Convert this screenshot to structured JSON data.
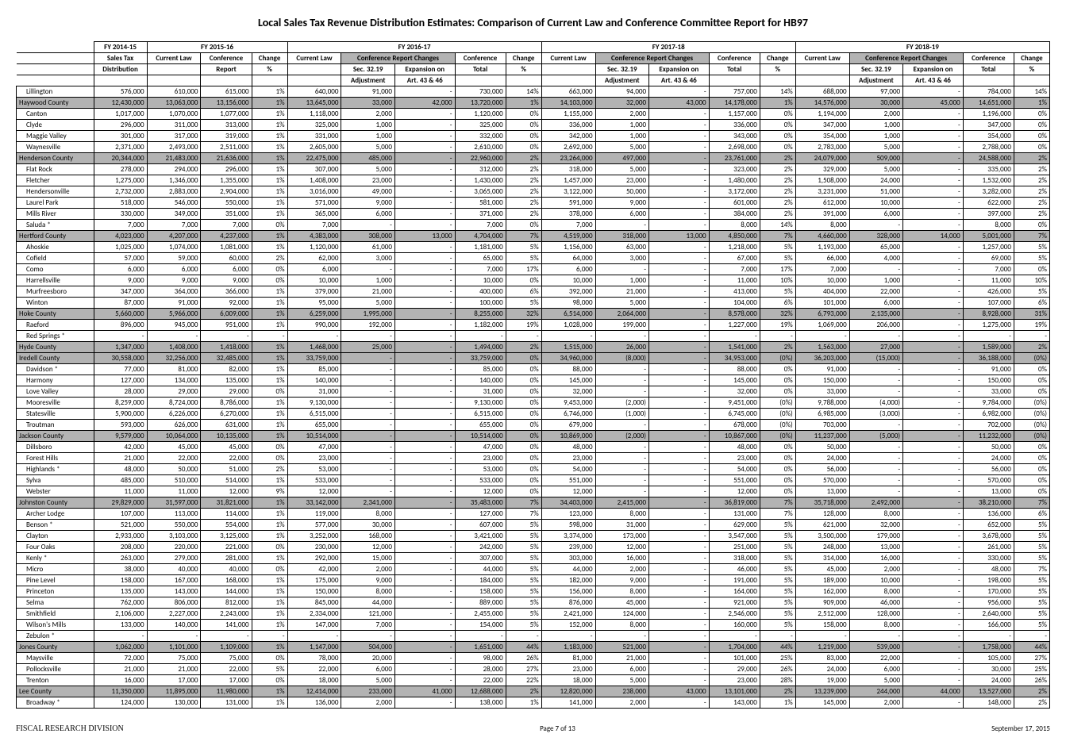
{
  "title": "Local Sales Tax Revenue Distribution Estimates: Comparison of Current Law and Conference Committee Report for HB97",
  "footer": {
    "left": "FISCAL RESEARCH DIVISION",
    "center": "Page 7 of 13",
    "right": "September 17, 2015"
  },
  "colors": {
    "county_bg": "#b3b3b3"
  },
  "headers": {
    "fy1415": "FY 2014-15",
    "fy1516": "FY 2015-16",
    "fy1617": "FY 2016-17",
    "fy1718": "FY 2017-18",
    "fy1819": "FY 2018-19",
    "salestax": "Sales Tax",
    "distribution": "Distribution",
    "currentlaw": "Current Law",
    "conference": "Conference",
    "report": "Report",
    "change": "Change",
    "pct": "%",
    "confchanges": "Conference Report Changes",
    "sec3219": "Sec. 32.19",
    "adjustment": "Adjustment",
    "expon": "Expansion on",
    "art": "Art. 43 & 46",
    "total": "Total"
  },
  "rows": [
    [
      "Lillington",
      0,
      "576,000",
      "610,000",
      "615,000",
      "1%",
      "640,000",
      "91,000",
      "-",
      "730,000",
      "14%",
      "663,000",
      "94,000",
      "-",
      "757,000",
      "14%",
      "688,000",
      "97,000",
      "-",
      "784,000",
      "14%"
    ],
    [
      "Haywood County",
      1,
      "12,430,000",
      "13,063,000",
      "13,156,000",
      "1%",
      "13,645,000",
      "33,000",
      "42,000",
      "13,720,000",
      "1%",
      "14,103,000",
      "32,000",
      "43,000",
      "14,178,000",
      "1%",
      "14,576,000",
      "30,000",
      "45,000",
      "14,651,000",
      "1%"
    ],
    [
      "Canton",
      0,
      "1,017,000",
      "1,070,000",
      "1,077,000",
      "1%",
      "1,118,000",
      "2,000",
      "-",
      "1,120,000",
      "0%",
      "1,155,000",
      "2,000",
      "-",
      "1,157,000",
      "0%",
      "1,194,000",
      "2,000",
      "-",
      "1,196,000",
      "0%"
    ],
    [
      "Clyde",
      0,
      "296,000",
      "311,000",
      "313,000",
      "1%",
      "325,000",
      "1,000",
      "-",
      "325,000",
      "0%",
      "336,000",
      "1,000",
      "-",
      "336,000",
      "0%",
      "347,000",
      "1,000",
      "-",
      "347,000",
      "0%"
    ],
    [
      "Maggie Valley",
      0,
      "301,000",
      "317,000",
      "319,000",
      "1%",
      "331,000",
      "1,000",
      "-",
      "332,000",
      "0%",
      "342,000",
      "1,000",
      "-",
      "343,000",
      "0%",
      "354,000",
      "1,000",
      "-",
      "354,000",
      "0%"
    ],
    [
      "Waynesville",
      0,
      "2,371,000",
      "2,493,000",
      "2,511,000",
      "1%",
      "2,605,000",
      "5,000",
      "-",
      "2,610,000",
      "0%",
      "2,692,000",
      "5,000",
      "-",
      "2,698,000",
      "0%",
      "2,783,000",
      "5,000",
      "-",
      "2,788,000",
      "0%"
    ],
    [
      "Henderson County",
      1,
      "20,344,000",
      "21,483,000",
      "21,636,000",
      "1%",
      "22,475,000",
      "485,000",
      "-",
      "22,960,000",
      "2%",
      "23,264,000",
      "497,000",
      "-",
      "23,761,000",
      "2%",
      "24,079,000",
      "509,000",
      "-",
      "24,588,000",
      "2%"
    ],
    [
      "Flat Rock",
      0,
      "278,000",
      "294,000",
      "296,000",
      "1%",
      "307,000",
      "5,000",
      "-",
      "312,000",
      "2%",
      "318,000",
      "5,000",
      "-",
      "323,000",
      "2%",
      "329,000",
      "5,000",
      "-",
      "335,000",
      "2%"
    ],
    [
      "Fletcher",
      0,
      "1,275,000",
      "1,346,000",
      "1,355,000",
      "1%",
      "1,408,000",
      "23,000",
      "-",
      "1,430,000",
      "2%",
      "1,457,000",
      "23,000",
      "-",
      "1,480,000",
      "2%",
      "1,508,000",
      "24,000",
      "-",
      "1,532,000",
      "2%"
    ],
    [
      "Hendersonville",
      0,
      "2,732,000",
      "2,883,000",
      "2,904,000",
      "1%",
      "3,016,000",
      "49,000",
      "-",
      "3,065,000",
      "2%",
      "3,122,000",
      "50,000",
      "-",
      "3,172,000",
      "2%",
      "3,231,000",
      "51,000",
      "-",
      "3,282,000",
      "2%"
    ],
    [
      "Laurel Park",
      0,
      "518,000",
      "546,000",
      "550,000",
      "1%",
      "571,000",
      "9,000",
      "-",
      "581,000",
      "2%",
      "591,000",
      "9,000",
      "-",
      "601,000",
      "2%",
      "612,000",
      "10,000",
      "-",
      "622,000",
      "2%"
    ],
    [
      "Mills River",
      0,
      "330,000",
      "349,000",
      "351,000",
      "1%",
      "365,000",
      "6,000",
      "-",
      "371,000",
      "2%",
      "378,000",
      "6,000",
      "-",
      "384,000",
      "2%",
      "391,000",
      "6,000",
      "-",
      "397,000",
      "2%"
    ],
    [
      "Saluda *",
      0,
      "7,000",
      "7,000",
      "7,000",
      "0%",
      "7,000",
      "-",
      "-",
      "7,000",
      "0%",
      "7,000",
      "-",
      "-",
      "8,000",
      "14%",
      "8,000",
      "-",
      "-",
      "8,000",
      "0%"
    ],
    [
      "Hertford County",
      1,
      "4,023,000",
      "4,207,000",
      "4,237,000",
      "1%",
      "4,383,000",
      "308,000",
      "13,000",
      "4,704,000",
      "7%",
      "4,519,000",
      "318,000",
      "13,000",
      "4,850,000",
      "7%",
      "4,660,000",
      "328,000",
      "14,000",
      "5,001,000",
      "7%"
    ],
    [
      "Ahoskie",
      0,
      "1,025,000",
      "1,074,000",
      "1,081,000",
      "1%",
      "1,120,000",
      "61,000",
      "-",
      "1,181,000",
      "5%",
      "1,156,000",
      "63,000",
      "-",
      "1,218,000",
      "5%",
      "1,193,000",
      "65,000",
      "-",
      "1,257,000",
      "5%"
    ],
    [
      "Cofield",
      0,
      "57,000",
      "59,000",
      "60,000",
      "2%",
      "62,000",
      "3,000",
      "-",
      "65,000",
      "5%",
      "64,000",
      "3,000",
      "-",
      "67,000",
      "5%",
      "66,000",
      "4,000",
      "-",
      "69,000",
      "5%"
    ],
    [
      "Como",
      0,
      "6,000",
      "6,000",
      "6,000",
      "0%",
      "6,000",
      "-",
      "-",
      "7,000",
      "17%",
      "6,000",
      "-",
      "-",
      "7,000",
      "17%",
      "7,000",
      "-",
      "-",
      "7,000",
      "0%"
    ],
    [
      "Harrellsville",
      0,
      "9,000",
      "9,000",
      "9,000",
      "0%",
      "10,000",
      "1,000",
      "-",
      "10,000",
      "0%",
      "10,000",
      "1,000",
      "-",
      "11,000",
      "10%",
      "10,000",
      "1,000",
      "-",
      "11,000",
      "10%"
    ],
    [
      "Murfreesboro",
      0,
      "347,000",
      "364,000",
      "366,000",
      "1%",
      "379,000",
      "21,000",
      "-",
      "400,000",
      "6%",
      "392,000",
      "21,000",
      "-",
      "413,000",
      "5%",
      "404,000",
      "22,000",
      "-",
      "426,000",
      "5%"
    ],
    [
      "Winton",
      0,
      "87,000",
      "91,000",
      "92,000",
      "1%",
      "95,000",
      "5,000",
      "-",
      "100,000",
      "5%",
      "98,000",
      "5,000",
      "-",
      "104,000",
      "6%",
      "101,000",
      "6,000",
      "-",
      "107,000",
      "6%"
    ],
    [
      "Hoke County",
      1,
      "5,660,000",
      "5,966,000",
      "6,009,000",
      "1%",
      "6,259,000",
      "1,995,000",
      "-",
      "8,255,000",
      "32%",
      "6,514,000",
      "2,064,000",
      "-",
      "8,578,000",
      "32%",
      "6,793,000",
      "2,135,000",
      "-",
      "8,928,000",
      "31%"
    ],
    [
      "Raeford",
      0,
      "896,000",
      "945,000",
      "951,000",
      "1%",
      "990,000",
      "192,000",
      "-",
      "1,182,000",
      "19%",
      "1,028,000",
      "199,000",
      "-",
      "1,227,000",
      "19%",
      "1,069,000",
      "206,000",
      "-",
      "1,275,000",
      "19%"
    ],
    [
      "Red Springs *",
      0,
      "-",
      "-",
      "-",
      "-",
      "-",
      "-",
      "-",
      "-",
      "-",
      "-",
      "-",
      "-",
      "-",
      "-",
      "-",
      "-",
      "-",
      "-",
      "-"
    ],
    [
      "Hyde County",
      1,
      "1,347,000",
      "1,408,000",
      "1,418,000",
      "1%",
      "1,468,000",
      "25,000",
      "-",
      "1,494,000",
      "2%",
      "1,515,000",
      "26,000",
      "-",
      "1,541,000",
      "2%",
      "1,563,000",
      "27,000",
      "-",
      "1,589,000",
      "2%"
    ],
    [
      "Iredell County",
      1,
      "30,558,000",
      "32,256,000",
      "32,485,000",
      "1%",
      "33,759,000",
      "-",
      "-",
      "33,759,000",
      "0%",
      "34,960,000",
      "(8,000)",
      "-",
      "34,953,000",
      "(0%)",
      "36,203,000",
      "(15,000)",
      "-",
      "36,188,000",
      "(0%)"
    ],
    [
      "Davidson *",
      0,
      "77,000",
      "81,000",
      "82,000",
      "1%",
      "85,000",
      "-",
      "-",
      "85,000",
      "0%",
      "88,000",
      "-",
      "-",
      "88,000",
      "0%",
      "91,000",
      "-",
      "-",
      "91,000",
      "0%"
    ],
    [
      "Harmony",
      0,
      "127,000",
      "134,000",
      "135,000",
      "1%",
      "140,000",
      "-",
      "-",
      "140,000",
      "0%",
      "145,000",
      "-",
      "-",
      "145,000",
      "0%",
      "150,000",
      "-",
      "-",
      "150,000",
      "0%"
    ],
    [
      "Love Valley",
      0,
      "28,000",
      "29,000",
      "29,000",
      "0%",
      "31,000",
      "-",
      "-",
      "31,000",
      "0%",
      "32,000",
      "-",
      "-",
      "32,000",
      "0%",
      "33,000",
      "-",
      "-",
      "33,000",
      "0%"
    ],
    [
      "Mooresville",
      0,
      "8,259,000",
      "8,724,000",
      "8,786,000",
      "1%",
      "9,130,000",
      "-",
      "-",
      "9,130,000",
      "0%",
      "9,453,000",
      "(2,000)",
      "-",
      "9,451,000",
      "(0%)",
      "9,788,000",
      "(4,000)",
      "-",
      "9,784,000",
      "(0%)"
    ],
    [
      "Statesville",
      0,
      "5,900,000",
      "6,226,000",
      "6,270,000",
      "1%",
      "6,515,000",
      "-",
      "-",
      "6,515,000",
      "0%",
      "6,746,000",
      "(1,000)",
      "-",
      "6,745,000",
      "(0%)",
      "6,985,000",
      "(3,000)",
      "-",
      "6,982,000",
      "(0%)"
    ],
    [
      "Troutman",
      0,
      "593,000",
      "626,000",
      "631,000",
      "1%",
      "655,000",
      "-",
      "-",
      "655,000",
      "0%",
      "679,000",
      "-",
      "-",
      "678,000",
      "(0%)",
      "703,000",
      "-",
      "-",
      "702,000",
      "(0%)"
    ],
    [
      "Jackson County",
      1,
      "9,579,000",
      "10,064,000",
      "10,135,000",
      "1%",
      "10,514,000",
      "-",
      "-",
      "10,514,000",
      "0%",
      "10,869,000",
      "(2,000)",
      "-",
      "10,867,000",
      "(0%)",
      "11,237,000",
      "(5,000)",
      "-",
      "11,232,000",
      "(0%)"
    ],
    [
      "Dillsboro",
      0,
      "42,000",
      "45,000",
      "45,000",
      "0%",
      "47,000",
      "-",
      "-",
      "47,000",
      "0%",
      "48,000",
      "-",
      "-",
      "48,000",
      "0%",
      "50,000",
      "-",
      "-",
      "50,000",
      "0%"
    ],
    [
      "Forest Hills",
      0,
      "21,000",
      "22,000",
      "22,000",
      "0%",
      "23,000",
      "-",
      "-",
      "23,000",
      "0%",
      "23,000",
      "-",
      "-",
      "23,000",
      "0%",
      "24,000",
      "-",
      "-",
      "24,000",
      "0%"
    ],
    [
      "Highlands *",
      0,
      "48,000",
      "50,000",
      "51,000",
      "2%",
      "53,000",
      "-",
      "-",
      "53,000",
      "0%",
      "54,000",
      "-",
      "-",
      "54,000",
      "0%",
      "56,000",
      "-",
      "-",
      "56,000",
      "0%"
    ],
    [
      "Sylva",
      0,
      "485,000",
      "510,000",
      "514,000",
      "1%",
      "533,000",
      "-",
      "-",
      "533,000",
      "0%",
      "551,000",
      "-",
      "-",
      "551,000",
      "0%",
      "570,000",
      "-",
      "-",
      "570,000",
      "0%"
    ],
    [
      "Webster",
      0,
      "11,000",
      "11,000",
      "12,000",
      "9%",
      "12,000",
      "-",
      "-",
      "12,000",
      "0%",
      "12,000",
      "-",
      "-",
      "12,000",
      "0%",
      "13,000",
      "-",
      "-",
      "13,000",
      "0%"
    ],
    [
      "Johnston County",
      1,
      "29,829,000",
      "31,597,000",
      "31,821,000",
      "1%",
      "33,142,000",
      "2,341,000",
      "-",
      "35,483,000",
      "7%",
      "34,403,000",
      "2,415,000",
      "-",
      "36,819,000",
      "7%",
      "35,718,000",
      "2,492,000",
      "-",
      "38,210,000",
      "7%"
    ],
    [
      "Archer Lodge",
      0,
      "107,000",
      "113,000",
      "114,000",
      "1%",
      "119,000",
      "8,000",
      "-",
      "127,000",
      "7%",
      "123,000",
      "8,000",
      "-",
      "131,000",
      "7%",
      "128,000",
      "8,000",
      "-",
      "136,000",
      "6%"
    ],
    [
      "Benson *",
      0,
      "521,000",
      "550,000",
      "554,000",
      "1%",
      "577,000",
      "30,000",
      "-",
      "607,000",
      "5%",
      "598,000",
      "31,000",
      "-",
      "629,000",
      "5%",
      "621,000",
      "32,000",
      "-",
      "652,000",
      "5%"
    ],
    [
      "Clayton",
      0,
      "2,933,000",
      "3,103,000",
      "3,125,000",
      "1%",
      "3,252,000",
      "168,000",
      "-",
      "3,421,000",
      "5%",
      "3,374,000",
      "173,000",
      "-",
      "3,547,000",
      "5%",
      "3,500,000",
      "179,000",
      "-",
      "3,678,000",
      "5%"
    ],
    [
      "Four Oaks",
      0,
      "208,000",
      "220,000",
      "221,000",
      "0%",
      "230,000",
      "12,000",
      "-",
      "242,000",
      "5%",
      "239,000",
      "12,000",
      "-",
      "251,000",
      "5%",
      "248,000",
      "13,000",
      "-",
      "261,000",
      "5%"
    ],
    [
      "Kenly *",
      0,
      "263,000",
      "279,000",
      "281,000",
      "1%",
      "292,000",
      "15,000",
      "-",
      "307,000",
      "5%",
      "303,000",
      "16,000",
      "-",
      "318,000",
      "5%",
      "314,000",
      "16,000",
      "-",
      "330,000",
      "5%"
    ],
    [
      "Micro",
      0,
      "38,000",
      "40,000",
      "40,000",
      "0%",
      "42,000",
      "2,000",
      "-",
      "44,000",
      "5%",
      "44,000",
      "2,000",
      "-",
      "46,000",
      "5%",
      "45,000",
      "2,000",
      "-",
      "48,000",
      "7%"
    ],
    [
      "Pine Level",
      0,
      "158,000",
      "167,000",
      "168,000",
      "1%",
      "175,000",
      "9,000",
      "-",
      "184,000",
      "5%",
      "182,000",
      "9,000",
      "-",
      "191,000",
      "5%",
      "189,000",
      "10,000",
      "-",
      "198,000",
      "5%"
    ],
    [
      "Princeton",
      0,
      "135,000",
      "143,000",
      "144,000",
      "1%",
      "150,000",
      "8,000",
      "-",
      "158,000",
      "5%",
      "156,000",
      "8,000",
      "-",
      "164,000",
      "5%",
      "162,000",
      "8,000",
      "-",
      "170,000",
      "5%"
    ],
    [
      "Selma",
      0,
      "762,000",
      "806,000",
      "812,000",
      "1%",
      "845,000",
      "44,000",
      "-",
      "889,000",
      "5%",
      "876,000",
      "45,000",
      "-",
      "921,000",
      "5%",
      "909,000",
      "46,000",
      "-",
      "956,000",
      "5%"
    ],
    [
      "Smithfield",
      0,
      "2,106,000",
      "2,227,000",
      "2,243,000",
      "1%",
      "2,334,000",
      "121,000",
      "-",
      "2,455,000",
      "5%",
      "2,421,000",
      "124,000",
      "-",
      "2,546,000",
      "5%",
      "2,512,000",
      "128,000",
      "-",
      "2,640,000",
      "5%"
    ],
    [
      "Wilson's Mills",
      0,
      "133,000",
      "140,000",
      "141,000",
      "1%",
      "147,000",
      "7,000",
      "-",
      "154,000",
      "5%",
      "152,000",
      "8,000",
      "-",
      "160,000",
      "5%",
      "158,000",
      "8,000",
      "-",
      "166,000",
      "5%"
    ],
    [
      "Zebulon *",
      0,
      "-",
      "-",
      "-",
      "-",
      "-",
      "-",
      "-",
      "-",
      "-",
      "-",
      "-",
      "-",
      "-",
      "-",
      "-",
      "-",
      "-",
      "-",
      "-"
    ],
    [
      "Jones County",
      1,
      "1,062,000",
      "1,101,000",
      "1,109,000",
      "1%",
      "1,147,000",
      "504,000",
      "-",
      "1,651,000",
      "44%",
      "1,183,000",
      "521,000",
      "-",
      "1,704,000",
      "44%",
      "1,219,000",
      "539,000",
      "-",
      "1,758,000",
      "44%"
    ],
    [
      "Maysville",
      0,
      "72,000",
      "75,000",
      "75,000",
      "0%",
      "78,000",
      "20,000",
      "-",
      "98,000",
      "26%",
      "81,000",
      "21,000",
      "-",
      "101,000",
      "25%",
      "83,000",
      "22,000",
      "-",
      "105,000",
      "27%"
    ],
    [
      "Pollocksville",
      0,
      "21,000",
      "21,000",
      "22,000",
      "5%",
      "22,000",
      "6,000",
      "-",
      "28,000",
      "27%",
      "23,000",
      "6,000",
      "-",
      "29,000",
      "26%",
      "24,000",
      "6,000",
      "-",
      "30,000",
      "25%"
    ],
    [
      "Trenton",
      0,
      "16,000",
      "17,000",
      "17,000",
      "0%",
      "18,000",
      "5,000",
      "-",
      "22,000",
      "22%",
      "18,000",
      "5,000",
      "-",
      "23,000",
      "28%",
      "19,000",
      "5,000",
      "-",
      "24,000",
      "26%"
    ],
    [
      "Lee County",
      1,
      "11,350,000",
      "11,895,000",
      "11,980,000",
      "1%",
      "12,414,000",
      "233,000",
      "41,000",
      "12,688,000",
      "2%",
      "12,820,000",
      "238,000",
      "43,000",
      "13,101,000",
      "2%",
      "13,239,000",
      "244,000",
      "44,000",
      "13,527,000",
      "2%"
    ],
    [
      "Broadway *",
      0,
      "124,000",
      "130,000",
      "131,000",
      "1%",
      "136,000",
      "2,000",
      "-",
      "138,000",
      "1%",
      "141,000",
      "2,000",
      "-",
      "143,000",
      "1%",
      "145,000",
      "2,000",
      "-",
      "148,000",
      "2%"
    ]
  ]
}
